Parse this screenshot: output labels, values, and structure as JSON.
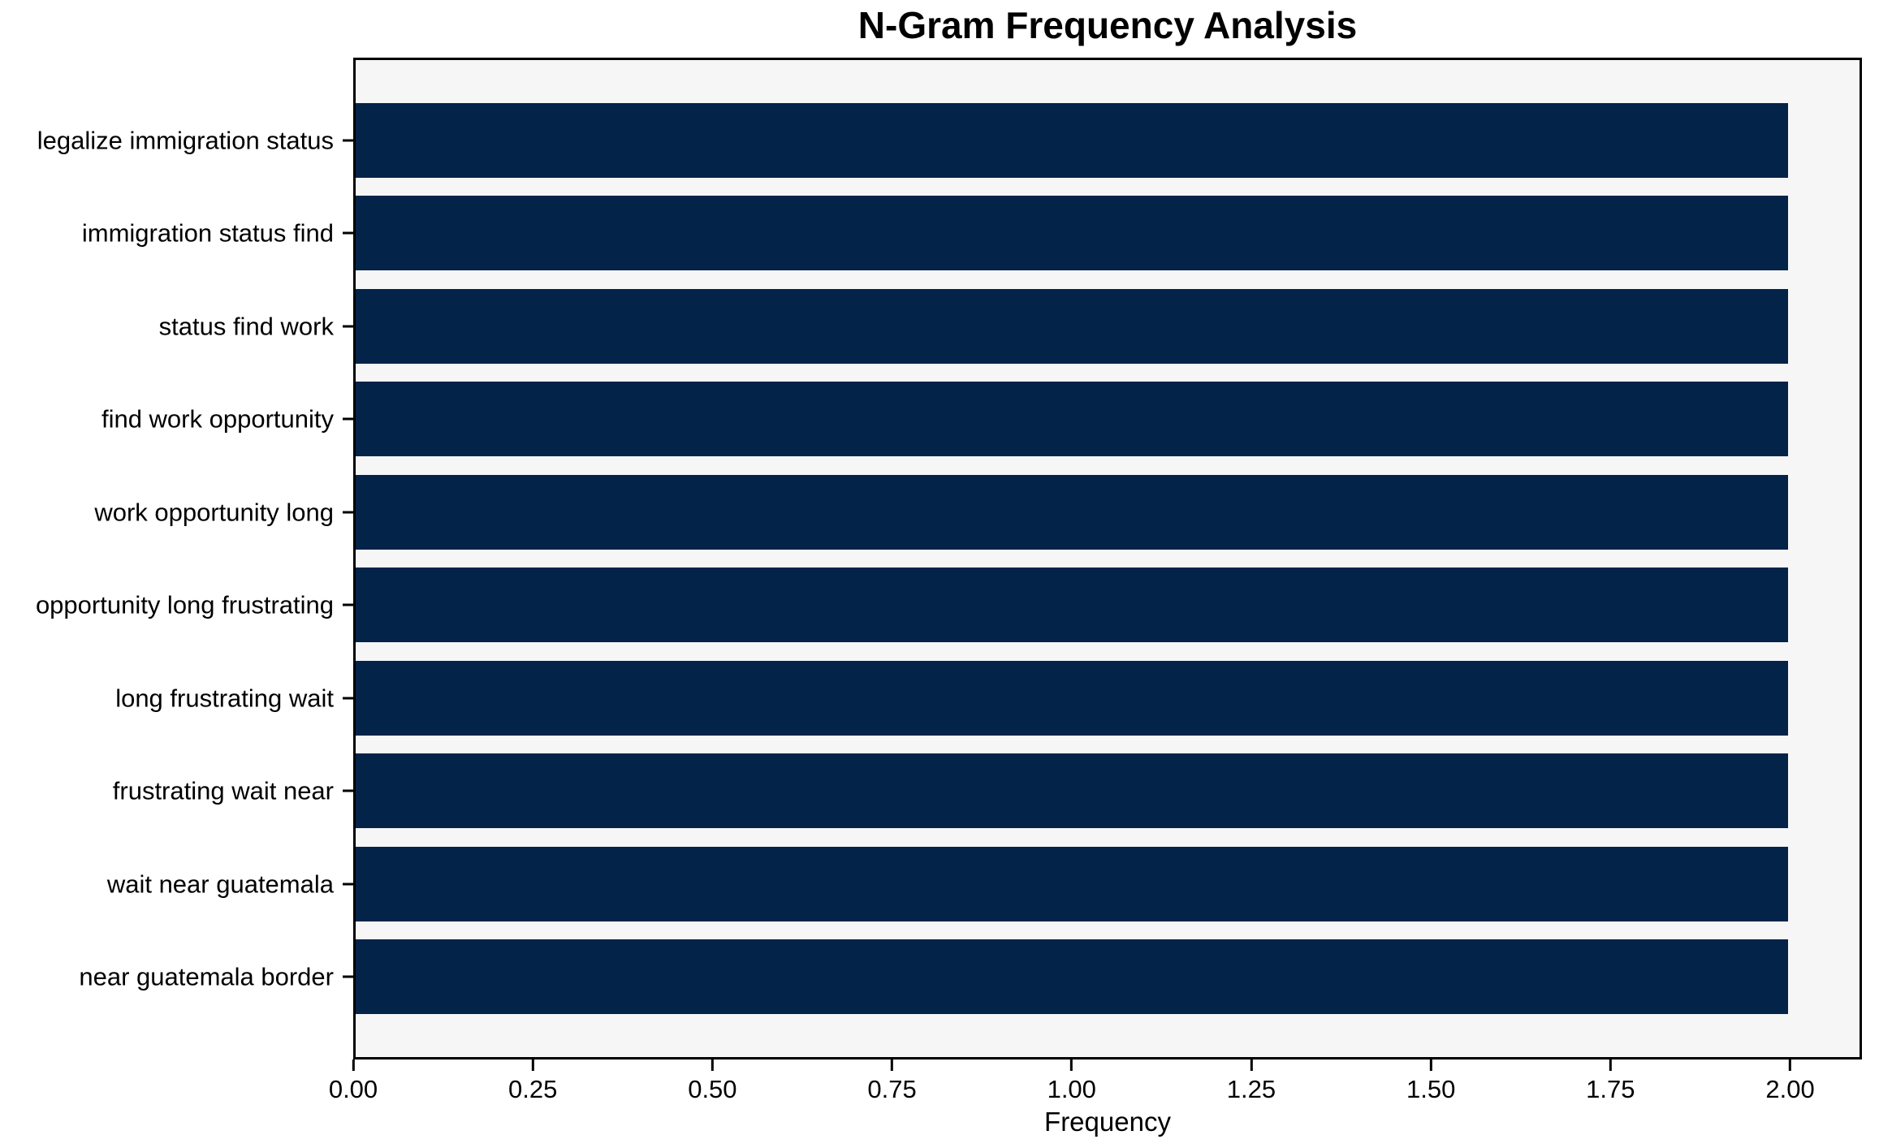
{
  "chart_data": {
    "type": "bar",
    "orientation": "horizontal",
    "title": "N-Gram Frequency Analysis",
    "xlabel": "Frequency",
    "ylabel": "",
    "categories": [
      "legalize immigration status",
      "immigration status find",
      "status find work",
      "find work opportunity",
      "work opportunity long",
      "opportunity long frustrating",
      "long frustrating wait",
      "frustrating wait near",
      "wait near guatemala",
      "near guatemala border"
    ],
    "values": [
      2,
      2,
      2,
      2,
      2,
      2,
      2,
      2,
      2,
      2
    ],
    "xlim": [
      0,
      2.1
    ],
    "xtick_labels": [
      "0.00",
      "0.25",
      "0.50",
      "0.75",
      "1.00",
      "1.25",
      "1.50",
      "1.75",
      "2.00"
    ],
    "grid": false,
    "legend": null,
    "colors": {
      "bar": "#042349",
      "plot_background": "#f6f6f7",
      "figure_background": "#ffffff",
      "spine": "#000000",
      "text": "#000000"
    }
  }
}
